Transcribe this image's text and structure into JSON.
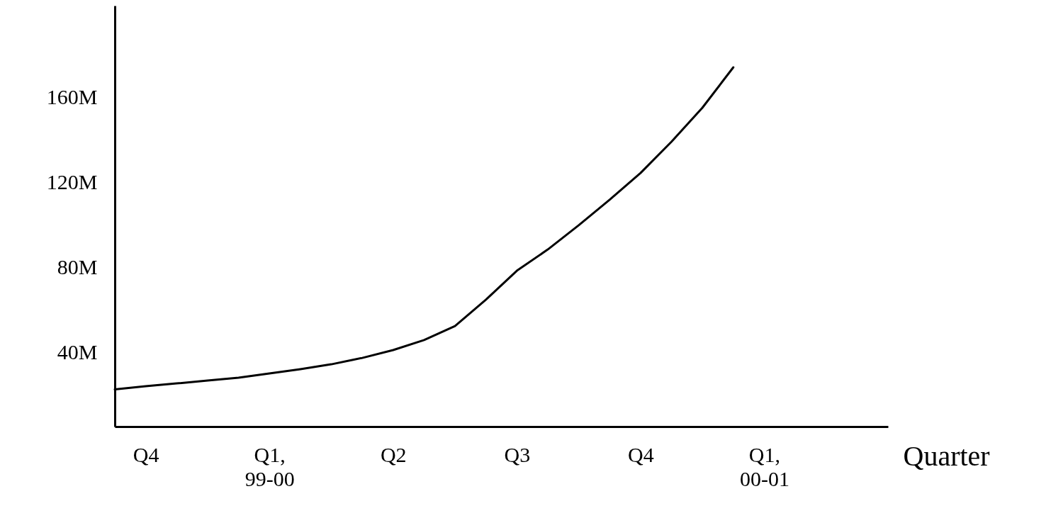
{
  "chart_data": {
    "type": "line",
    "xlabel": "Quarter",
    "categories": [
      null,
      "Q4",
      null,
      null,
      null,
      "Q1,\n99-00",
      null,
      null,
      null,
      "Q2",
      null,
      null,
      null,
      "Q3",
      null,
      null,
      null,
      "Q4",
      null,
      null,
      null,
      "Q1,\n00-01",
      null,
      null,
      null,
      null
    ],
    "series": [
      {
        "color": "#000000",
        "values": [
          22.5,
          24,
          25.3,
          26.7,
          28,
          30,
          32,
          34.3,
          37.3,
          41,
          45.7,
          52.3,
          64.7,
          78.3,
          88.3,
          99.7,
          111.7,
          124.3,
          139,
          155,
          174,
          null,
          null,
          null,
          null,
          null
        ]
      }
    ],
    "ylim": [
      5,
      203
    ],
    "yticks": [
      {
        "value": 40,
        "label": "40M"
      },
      {
        "value": 80,
        "label": "80M"
      },
      {
        "value": 120,
        "label": "120M"
      },
      {
        "value": 160,
        "label": "160M"
      }
    ],
    "grid": false,
    "marker": "none",
    "line_style": "solid"
  }
}
